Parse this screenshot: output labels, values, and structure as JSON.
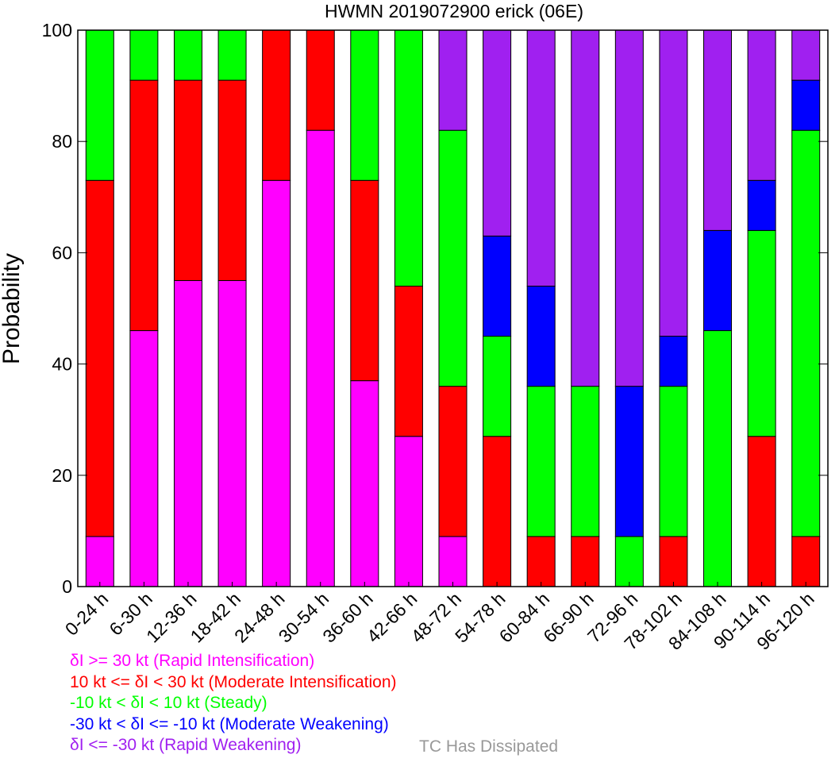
{
  "chart_data": {
    "type": "bar",
    "stacked": true,
    "title": "HWMN 2019072900 erick (06E)",
    "xlabel": "",
    "ylabel": "Probability",
    "ylim": [
      0,
      100
    ],
    "yticks": [
      "0",
      "20",
      "40",
      "60",
      "80",
      "100"
    ],
    "grid": false,
    "categories": [
      "0-24 h",
      "6-30 h",
      "12-36 h",
      "18-42 h",
      "24-48 h",
      "30-54 h",
      "36-60 h",
      "42-66 h",
      "48-72 h",
      "54-78 h",
      "60-84 h",
      "66-90 h",
      "72-96 h",
      "78-102 h",
      "84-108 h",
      "90-114 h",
      "96-120 h"
    ],
    "series": [
      {
        "name": "δI >= 30 kt (Rapid Intensification)",
        "color": "#ff00ff",
        "values": [
          9,
          46,
          55,
          55,
          73,
          82,
          37,
          27,
          9,
          0,
          0,
          0,
          0,
          0,
          0,
          0,
          0
        ]
      },
      {
        "name": "10 kt <= δI < 30 kt (Moderate Intensification)",
        "color": "#ff0000",
        "values": [
          64,
          45,
          36,
          36,
          27,
          18,
          36,
          27,
          27,
          27,
          9,
          9,
          0,
          9,
          0,
          27,
          9
        ]
      },
      {
        "name": "-10 kt < δI < 10 kt (Steady)",
        "color": "#00ff00",
        "values": [
          27,
          9,
          9,
          9,
          0,
          0,
          27,
          46,
          46,
          18,
          27,
          27,
          9,
          27,
          46,
          37,
          73
        ]
      },
      {
        "name": "-30 kt < δI <= -10 kt (Moderate Weakening)",
        "color": "#0000ff",
        "values": [
          0,
          0,
          0,
          0,
          0,
          0,
          0,
          0,
          0,
          18,
          18,
          0,
          27,
          9,
          18,
          9,
          9
        ]
      },
      {
        "name": "δI <= -30 kt (Rapid Weakening)",
        "color": "#a020f0",
        "values": [
          0,
          0,
          0,
          0,
          0,
          0,
          0,
          0,
          18,
          37,
          46,
          64,
          64,
          55,
          36,
          27,
          9
        ]
      }
    ],
    "legend_placement": "bottom-left",
    "legend": [
      {
        "text": "δI >= 30 kt (Rapid Intensification)",
        "color": "#ff00ff"
      },
      {
        "text": "10 kt <= δI < 30 kt (Moderate Intensification)",
        "color": "#ff0000"
      },
      {
        "text": "-10 kt < δI < 10 kt (Steady)",
        "color": "#00ff00"
      },
      {
        "text": "-30 kt < δI <= -10 kt (Moderate Weakening)",
        "color": "#0000ff"
      },
      {
        "text": "δI <= -30 kt (Rapid Weakening)",
        "color": "#a020f0"
      }
    ],
    "dissipated_label": "TC Has Dissipated",
    "dissipated_color": "#999999"
  }
}
